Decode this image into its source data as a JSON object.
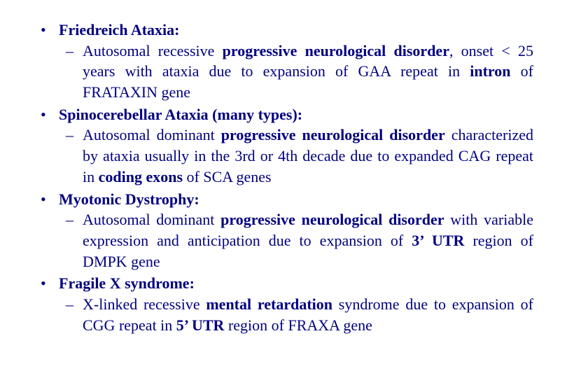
{
  "colors": {
    "text": "#000080",
    "background": "#ffffff"
  },
  "typography": {
    "font_family": "Times New Roman",
    "font_size_pt": 17,
    "line_height": 1.35
  },
  "items": [
    {
      "title": "Friedreich Ataxia:",
      "sub_pre": "Autosomal recessive ",
      "sub_bold1": "progressive neurological disorder",
      "sub_mid": ", onset < 25 years with ataxia due to expansion of GAA repeat in ",
      "sub_bold2": "intron",
      "sub_post": " of FRATAXIN  gene"
    },
    {
      "title": "Spinocerebellar Ataxia (many types):",
      "sub_pre": "Autosomal dominant ",
      "sub_bold1": "progressive neurological disorder",
      "sub_mid": " characterized by ataxia usually in the 3rd or 4th decade due to expanded CAG repeat in ",
      "sub_bold2": "coding exons",
      "sub_post": " of SCA genes"
    },
    {
      "title": "Myotonic Dystrophy:",
      "sub_pre": "Autosomal dominant ",
      "sub_bold1": "progressive neurological disorder",
      "sub_mid": " with variable expression and anticipation due to expansion of ",
      "sub_bold2": "3’ UTR",
      "sub_post": " region of DMPK gene"
    },
    {
      "title": "Fragile X syndrome:",
      "sub_pre": "X-linked recessive  ",
      "sub_bold1": "mental retardation",
      "sub_mid": " syndrome due to expansion of CGG repeat in ",
      "sub_bold2": "5’ UTR",
      "sub_post": " region of FRAXA gene"
    }
  ]
}
